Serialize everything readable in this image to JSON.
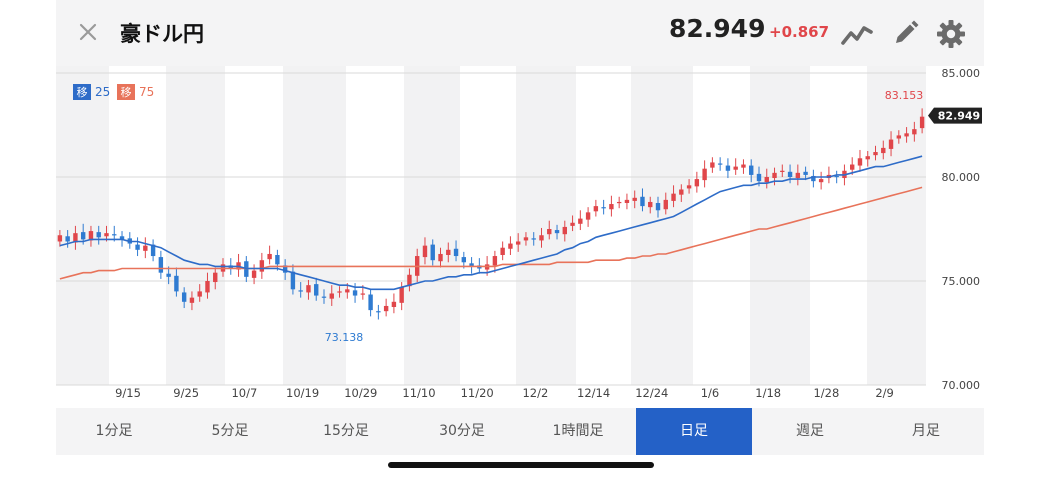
{
  "header": {
    "title": "豪ドル円",
    "price": "82.949",
    "change": "+0.867"
  },
  "icons": [
    "close-icon",
    "line-chart-icon",
    "pencil-icon",
    "gear-icon"
  ],
  "colors": {
    "up": "#e0464a",
    "down": "#2f7bd1",
    "ma25": "#2e6cc8",
    "ma75": "#e8735a",
    "active_tab": "#2461c7"
  },
  "legend": {
    "ma25_badge": "移",
    "ma25_label": "25",
    "ma75_badge": "移",
    "ma75_label": "75"
  },
  "tabs": [
    "1分足",
    "5分足",
    "15分足",
    "30分足",
    "1時間足",
    "日足",
    "週足",
    "月足"
  ],
  "active_tab": "日足",
  "chart_data": {
    "type": "candlestick",
    "y_ticks": [
      "85.000",
      "80.000",
      "75.000",
      "70.000"
    ],
    "ylim": [
      70,
      85
    ],
    "x_ticks": [
      "9/15",
      "9/25",
      "10/7",
      "10/19",
      "10/29",
      "11/10",
      "11/20",
      "12/2",
      "12/14",
      "12/24",
      "1/6",
      "1/18",
      "1/28",
      "2/9"
    ],
    "high_label": "83.153",
    "low_label": "73.138",
    "last_price_label": "82.949",
    "closes": [
      77.2,
      76.9,
      77.3,
      77.0,
      77.4,
      77.1,
      77.3,
      77.2,
      77.0,
      76.8,
      76.5,
      76.7,
      76.2,
      75.4,
      75.2,
      74.5,
      74.0,
      74.2,
      74.5,
      75.0,
      75.4,
      75.8,
      75.6,
      75.9,
      75.2,
      75.5,
      76.0,
      76.3,
      75.8,
      75.4,
      74.6,
      74.5,
      74.8,
      74.3,
      74.2,
      74.4,
      74.5,
      74.6,
      74.3,
      74.4,
      73.6,
      73.5,
      73.8,
      74.0,
      74.7,
      75.3,
      76.2,
      76.7,
      76.0,
      76.3,
      76.5,
      76.2,
      75.9,
      75.7,
      75.6,
      75.8,
      76.2,
      76.6,
      76.8,
      76.9,
      77.1,
      77.0,
      77.2,
      77.5,
      77.3,
      77.6,
      77.8,
      78.0,
      78.3,
      78.6,
      78.5,
      78.7,
      78.8,
      78.9,
      79.0,
      78.6,
      78.8,
      78.4,
      78.9,
      79.2,
      79.4,
      79.6,
      79.9,
      80.4,
      80.7,
      80.6,
      80.3,
      80.5,
      80.6,
      80.1,
      79.8,
      80.0,
      80.2,
      80.3,
      80.0,
      80.2,
      80.1,
      79.8,
      79.9,
      80.1,
      80.0,
      80.3,
      80.6,
      80.9,
      81.0,
      81.2,
      81.4,
      81.8,
      82.0,
      82.1,
      82.3,
      82.9
    ],
    "ma25": [
      76.7,
      76.8,
      76.9,
      76.9,
      77.0,
      77.0,
      77.0,
      77.0,
      77.0,
      76.9,
      76.9,
      76.8,
      76.7,
      76.6,
      76.4,
      76.2,
      76.0,
      75.9,
      75.8,
      75.8,
      75.7,
      75.7,
      75.7,
      75.7,
      75.6,
      75.6,
      75.6,
      75.6,
      75.6,
      75.5,
      75.4,
      75.3,
      75.2,
      75.1,
      75.0,
      74.9,
      74.8,
      74.8,
      74.7,
      74.7,
      74.6,
      74.6,
      74.6,
      74.6,
      74.7,
      74.8,
      74.9,
      75.0,
      75.0,
      75.1,
      75.2,
      75.2,
      75.3,
      75.3,
      75.4,
      75.4,
      75.5,
      75.6,
      75.7,
      75.8,
      75.9,
      76.0,
      76.1,
      76.2,
      76.3,
      76.5,
      76.6,
      76.8,
      76.9,
      77.1,
      77.2,
      77.3,
      77.4,
      77.5,
      77.6,
      77.7,
      77.8,
      77.9,
      78.0,
      78.1,
      78.3,
      78.5,
      78.7,
      78.9,
      79.1,
      79.3,
      79.4,
      79.5,
      79.6,
      79.6,
      79.7,
      79.7,
      79.8,
      79.8,
      79.9,
      79.9,
      79.9,
      80.0,
      80.0,
      80.0,
      80.1,
      80.1,
      80.2,
      80.3,
      80.4,
      80.5,
      80.5,
      80.6,
      80.7,
      80.8,
      80.9,
      81.0
    ],
    "ma75": [
      75.1,
      75.2,
      75.3,
      75.4,
      75.4,
      75.5,
      75.5,
      75.5,
      75.6,
      75.6,
      75.6,
      75.6,
      75.6,
      75.6,
      75.6,
      75.6,
      75.6,
      75.6,
      75.6,
      75.6,
      75.6,
      75.6,
      75.6,
      75.6,
      75.6,
      75.6,
      75.6,
      75.7,
      75.7,
      75.7,
      75.7,
      75.7,
      75.7,
      75.7,
      75.7,
      75.7,
      75.7,
      75.7,
      75.7,
      75.7,
      75.7,
      75.7,
      75.7,
      75.7,
      75.7,
      75.7,
      75.7,
      75.7,
      75.7,
      75.7,
      75.7,
      75.7,
      75.7,
      75.7,
      75.7,
      75.7,
      75.7,
      75.8,
      75.8,
      75.8,
      75.8,
      75.8,
      75.8,
      75.8,
      75.9,
      75.9,
      75.9,
      75.9,
      75.9,
      76.0,
      76.0,
      76.0,
      76.0,
      76.1,
      76.1,
      76.2,
      76.2,
      76.3,
      76.3,
      76.4,
      76.5,
      76.6,
      76.7,
      76.8,
      76.9,
      77.0,
      77.1,
      77.2,
      77.3,
      77.4,
      77.5,
      77.5,
      77.6,
      77.7,
      77.8,
      77.9,
      78.0,
      78.1,
      78.2,
      78.3,
      78.4,
      78.5,
      78.6,
      78.7,
      78.8,
      78.9,
      79.0,
      79.1,
      79.2,
      79.3,
      79.4,
      79.5
    ]
  }
}
